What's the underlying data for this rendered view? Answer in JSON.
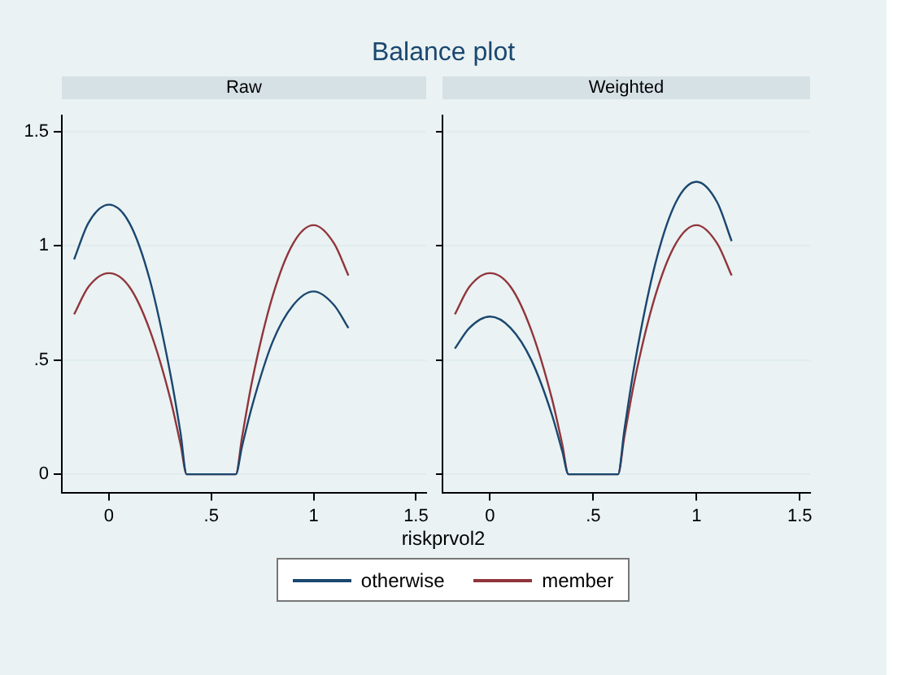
{
  "chart_data": [
    {
      "type": "line",
      "title": "Balance plot",
      "subtitle": "Raw",
      "xlabel": "riskprvol2",
      "x": [
        -0.17,
        -0.1,
        0,
        0.1,
        0.2,
        0.3,
        0.35,
        0.38,
        0.62,
        0.65,
        0.7,
        0.8,
        0.9,
        1,
        1.1,
        1.17
      ],
      "series": [
        {
          "name": "otherwise",
          "color": "#1a476f",
          "values": [
            0.94,
            1.1,
            1.18,
            1.1,
            0.85,
            0.44,
            0.18,
            0,
            0,
            0.12,
            0.3,
            0.58,
            0.74,
            0.8,
            0.74,
            0.64
          ]
        },
        {
          "name": "member",
          "color": "#90353b",
          "values": [
            0.7,
            0.82,
            0.88,
            0.82,
            0.63,
            0.33,
            0.13,
            0,
            0,
            0.16,
            0.41,
            0.78,
            1.01,
            1.09,
            1.01,
            0.87
          ]
        }
      ],
      "xlim": [
        -0.23,
        1.55
      ],
      "xticks": [
        0,
        {
          "value": 0.5,
          "label": ".5"
        },
        1,
        1.5
      ],
      "ylim": [
        -0.08,
        1.57
      ],
      "yticks": [
        0,
        {
          "value": 0.5,
          "label": ".5"
        },
        1,
        1.5
      ],
      "grid": "y",
      "legend": "bottom",
      "marker": "none"
    },
    {
      "type": "line",
      "subtitle": "Weighted",
      "x": [
        -0.17,
        -0.1,
        0,
        0.1,
        0.2,
        0.3,
        0.35,
        0.38,
        0.62,
        0.65,
        0.7,
        0.8,
        0.9,
        1,
        1.1,
        1.17
      ],
      "series": [
        {
          "color": "#1a476f",
          "values": [
            0.55,
            0.64,
            0.69,
            0.64,
            0.5,
            0.26,
            0.1,
            0,
            0,
            0.19,
            0.48,
            0.92,
            1.19,
            1.28,
            1.19,
            1.02
          ]
        },
        {
          "color": "#90353b",
          "values": [
            0.7,
            0.82,
            0.88,
            0.82,
            0.63,
            0.33,
            0.13,
            0,
            0,
            0.16,
            0.41,
            0.78,
            1.01,
            1.09,
            1.01,
            0.87
          ]
        }
      ],
      "xlim": [
        -0.23,
        1.55
      ],
      "xticks": [
        0,
        {
          "value": 0.5,
          "label": ".5"
        },
        1,
        1.5
      ],
      "ylim": [
        -0.08,
        1.57
      ],
      "yticks": [
        {
          "value": 0,
          "label": null
        },
        {
          "value": 0.5,
          "label": null
        },
        {
          "value": 1,
          "label": null
        },
        {
          "value": 1.5,
          "label": null
        }
      ],
      "grid": "y",
      "tick_labels": "x",
      "marker": "none"
    }
  ]
}
